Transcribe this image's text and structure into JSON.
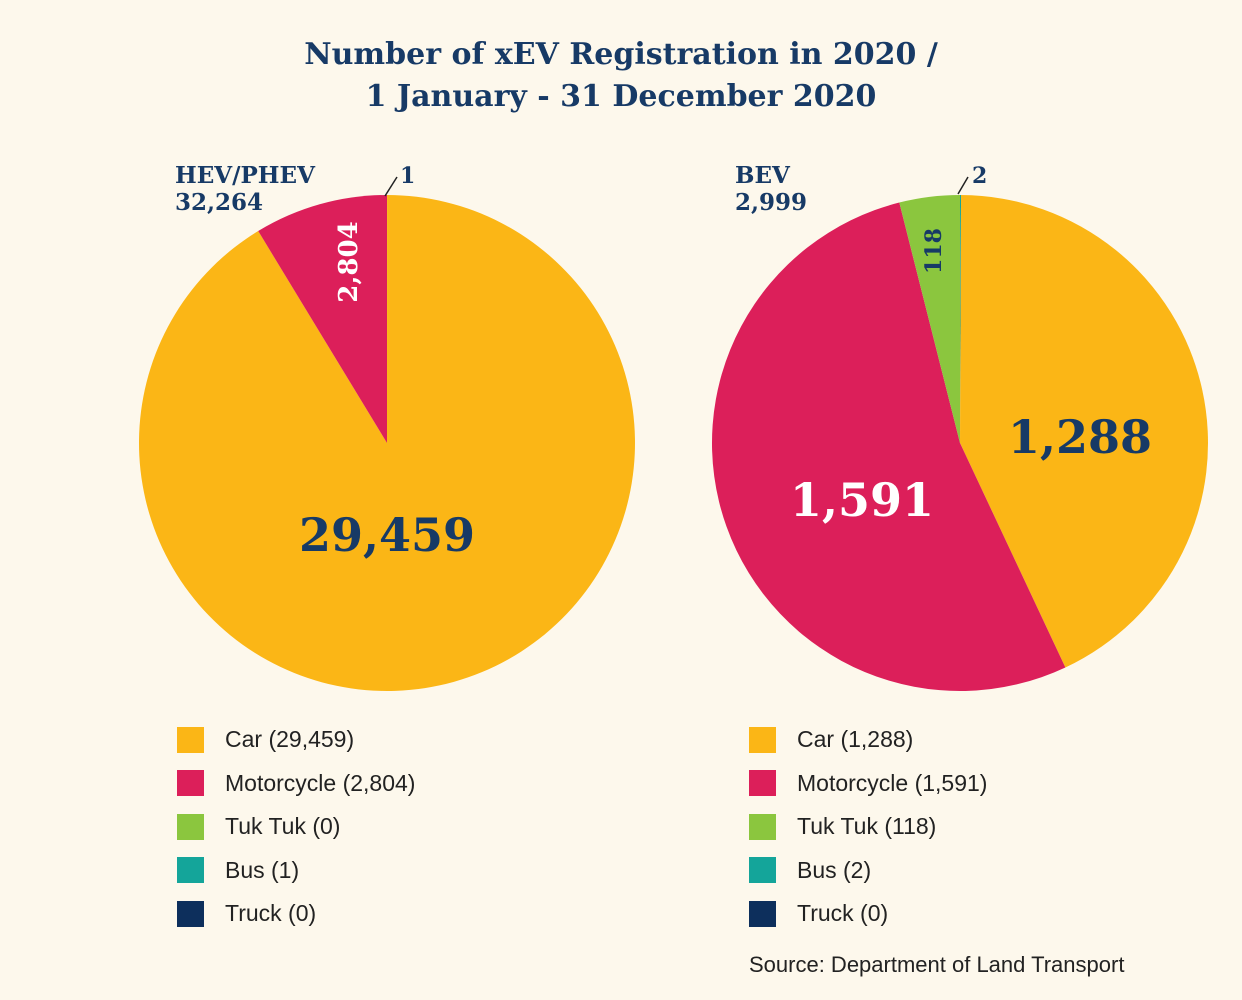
{
  "title": {
    "line1": "Number of xEV Registration in 2020 /",
    "line2": "1 January - 31 December 2020"
  },
  "colors": {
    "Car": "#fbb616",
    "Motorcycle": "#dc1f5a",
    "Tuk Tuk": "#8bc63e",
    "Bus": "#14a59a",
    "Truck": "#0d2f5c",
    "label_dark": "#173a66",
    "label_light": "#ffffff"
  },
  "chart_data": [
    {
      "type": "pie",
      "group_label": "HEV/PHEV",
      "total_label": "32,264",
      "categories": [
        "Car",
        "Motorcycle",
        "Tuk Tuk",
        "Bus",
        "Truck"
      ],
      "values": [
        29459,
        2804,
        0,
        1,
        0
      ],
      "slice_labels": [
        "29,459",
        "2,804",
        "",
        "1",
        ""
      ],
      "legend": [
        "Car (29,459)",
        "Motorcycle (2,804)",
        "Tuk Tuk (0)",
        "Bus (1)",
        "Truck (0)"
      ]
    },
    {
      "type": "pie",
      "group_label": "BEV",
      "total_label": "2,999",
      "categories": [
        "Car",
        "Motorcycle",
        "Tuk Tuk",
        "Bus",
        "Truck"
      ],
      "values": [
        1288,
        1591,
        118,
        2,
        0
      ],
      "slice_labels": [
        "1,288",
        "1,591",
        "118",
        "2",
        ""
      ],
      "legend": [
        "Car (1,288)",
        "Motorcycle (1,591)",
        "Tuk Tuk (118)",
        "Bus (2)",
        "Truck (0)"
      ]
    }
  ],
  "source": "Source: Department of Land Transport"
}
